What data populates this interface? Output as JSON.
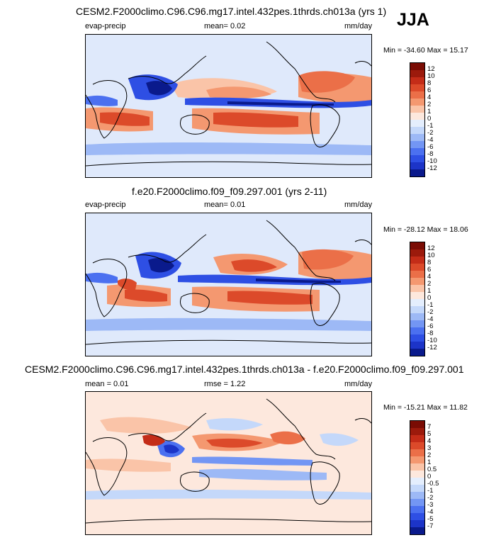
{
  "season": "JJA",
  "colors": {
    "sequential": [
      "#0a1a8c",
      "#1c34c8",
      "#2e4fe4",
      "#4b70f0",
      "#7396f4",
      "#9db9f6",
      "#c4d8fa",
      "#e4eefd",
      "#fde8dd",
      "#fac4a8",
      "#f49870",
      "#eb6f48",
      "#dc4a2a",
      "#c42c18",
      "#9c1a0c",
      "#7a0c04"
    ],
    "diverging": [
      "#0a1a8c",
      "#1c34c8",
      "#2e4fe4",
      "#4b70f0",
      "#7396f4",
      "#9db9f6",
      "#c4d8fa",
      "#e4eefd",
      "#fde8dd",
      "#fac4a8",
      "#f49870",
      "#eb6f48",
      "#dc4a2a",
      "#c42c18",
      "#9c1a0c",
      "#7a0c04"
    ]
  },
  "panels": [
    {
      "title": "CESM2.F2000climo.C96.C96.mg17.intel.432pes.1thrds.ch013a (yrs 1)",
      "left_label": "evap-precip",
      "center_label": "mean=   0.02",
      "right_label": "mm/day",
      "minmax": "Min = -34.60 Max =  15.17"
    },
    {
      "title": "f.e20.F2000climo.f09_f09.297.001 (yrs 2-11)",
      "left_label": "evap-precip",
      "center_label": "mean=   0.01",
      "right_label": "mm/day",
      "minmax": "Min = -28.12 Max =  18.06"
    },
    {
      "title": "CESM2.F2000climo.C96.C96.mg17.intel.432pes.1thrds.ch013a - f.e20.F2000climo.f09_f09.297.001",
      "left_label": "mean =   0.01",
      "center_label": "rmse =   1.22",
      "right_label": "mm/day",
      "minmax": "Min = -15.21 Max =  11.82"
    }
  ],
  "chart_data": [
    {
      "type": "heatmap",
      "title": "CESM2.F2000climo.C96.C96.mg17.intel.432pes.1thrds.ch013a (yrs 1)",
      "variable": "evap-precip",
      "units": "mm/day",
      "mean": 0.02,
      "min": -34.6,
      "max": 15.17,
      "colorbar_levels": [
        12,
        10,
        8,
        6,
        4,
        2,
        1,
        0,
        -1,
        -2,
        -4,
        -6,
        -8,
        -10,
        -12
      ]
    },
    {
      "type": "heatmap",
      "title": "f.e20.F2000climo.f09_f09.297.001 (yrs 2-11)",
      "variable": "evap-precip",
      "units": "mm/day",
      "mean": 0.01,
      "min": -28.12,
      "max": 18.06,
      "colorbar_levels": [
        12,
        10,
        8,
        6,
        4,
        2,
        1,
        0,
        -1,
        -2,
        -4,
        -6,
        -8,
        -10,
        -12
      ]
    },
    {
      "type": "heatmap",
      "title": "CESM2.F2000climo.C96.C96.mg17.intel.432pes.1thrds.ch013a - f.e20.F2000climo.f09_f09.297.001",
      "units": "mm/day",
      "mean": 0.01,
      "rmse": 1.22,
      "min": -15.21,
      "max": 11.82,
      "colorbar_levels": [
        7,
        5,
        4,
        3,
        2,
        1,
        0.5,
        0,
        -0.5,
        -1,
        -2,
        -3,
        -4,
        -5,
        -7
      ]
    }
  ]
}
